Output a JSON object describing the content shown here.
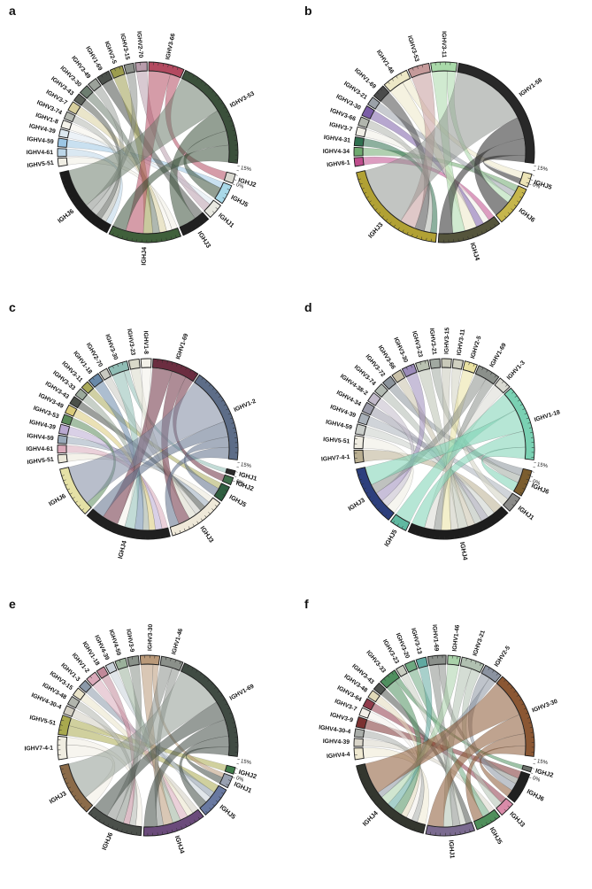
{
  "figure_title": "",
  "scale_axis": {
    "min_label": "0%",
    "max_label": "15%"
  },
  "chart_data": [
    {
      "type": "chord",
      "letter": "a",
      "scale_ticks": [
        "15%",
        "0%"
      ],
      "v_segments": [
        {
          "label": "IGHV5-51",
          "color": "#f0eee4"
        },
        {
          "label": "IGHV4-61",
          "color": "#bcd6e8"
        },
        {
          "label": "IGHV4-59",
          "color": "#9cc6e4"
        },
        {
          "label": "IGHV4-39",
          "color": "#dce8f0"
        },
        {
          "label": "IGHV1-8",
          "color": "#f4f2ea"
        },
        {
          "label": "IGHV3-74",
          "color": "#b4b8b0"
        },
        {
          "label": "IGHV3-7",
          "color": "#d8cf9e"
        },
        {
          "label": "IGHV3-43",
          "color": "#5a5f58"
        },
        {
          "label": "IGHV3-30",
          "color": "#6d7d70"
        },
        {
          "label": "IGHV3-49",
          "color": "#9ba19a"
        },
        {
          "label": "IGHV1-69",
          "color": "#4b504b"
        },
        {
          "label": "IGHV2-5",
          "color": "#9c9c4e"
        },
        {
          "label": "IGHV3-15",
          "color": "#8b908a"
        },
        {
          "label": "IGHV2-70",
          "color": "#b89cab"
        },
        {
          "label": "IGHV3-66",
          "color": "#b34a60"
        },
        {
          "label": "IGHV3-53",
          "color": "#3b503b"
        }
      ],
      "j_segments": [
        {
          "label": "IGHJ2",
          "color": "#d9d9d1"
        },
        {
          "label": "IGHJ5",
          "color": "#a9d9e9"
        },
        {
          "label": "IGHJ1",
          "color": "#e9e9e1"
        },
        {
          "label": "IGHJ3",
          "color": "#202020"
        },
        {
          "label": "IGHJ4",
          "color": "#40603b"
        },
        {
          "label": "IGHJ6",
          "color": "#1b1b1b"
        }
      ],
      "ribbons": [
        [
          0,
          4,
          1.5
        ],
        [
          1,
          5,
          1.5
        ],
        [
          2,
          1,
          1.6
        ],
        [
          3,
          2,
          1.4
        ],
        [
          4,
          4,
          1.4
        ],
        [
          5,
          5,
          1.4
        ],
        [
          6,
          4,
          1.8
        ],
        [
          7,
          5,
          1.5
        ],
        [
          8,
          4,
          1.8
        ],
        [
          9,
          5,
          1.8
        ],
        [
          10,
          3,
          2.4
        ],
        [
          11,
          4,
          2.4
        ],
        [
          12,
          5,
          1.8
        ],
        [
          13,
          2,
          2.2
        ],
        [
          14,
          4,
          4.5
        ],
        [
          14,
          0,
          2.2
        ],
        [
          15,
          5,
          10,
          "#6e7d6e"
        ],
        [
          15,
          3,
          4.5
        ],
        [
          15,
          1,
          3.0
        ],
        [
          15,
          4,
          3.5
        ]
      ]
    },
    {
      "type": "chord",
      "letter": "b",
      "scale_ticks": [
        "15%",
        "0%"
      ],
      "v_segments": [
        {
          "label": "IGHV6-1",
          "color": "#bf4d8d"
        },
        {
          "label": "IGHV4-34",
          "color": "#6fa96f"
        },
        {
          "label": "IGHV4-31",
          "color": "#2f6f4f"
        },
        {
          "label": "IGHV3-7",
          "color": "#f0eee6"
        },
        {
          "label": "IGHV3-66",
          "color": "#b1b5ad"
        },
        {
          "label": "IGHV3-30",
          "color": "#7b5ea7"
        },
        {
          "label": "IGHV3-21",
          "color": "#9ba1a9"
        },
        {
          "label": "IGHV1-69",
          "color": "#4b4b4b"
        },
        {
          "label": "IGHV1-46",
          "color": "#ede8c6"
        },
        {
          "label": "IGHV3-53",
          "color": "#c59a9a"
        },
        {
          "label": "IGHV3-11",
          "color": "#a9d9a9"
        },
        {
          "label": "IGHV1-58",
          "color": "#282828"
        }
      ],
      "j_segments": [
        {
          "label": "IGHJ5",
          "color": "#ece4b6"
        },
        {
          "label": "IGHJ6",
          "color": "#c6b64c"
        },
        {
          "label": "IGHJ4",
          "color": "#55553c"
        },
        {
          "label": "IGHJ3",
          "color": "#b1a134"
        }
      ],
      "ribbons": [
        [
          0,
          2,
          1.8
        ],
        [
          1,
          1,
          1.8
        ],
        [
          2,
          3,
          1.8
        ],
        [
          3,
          2,
          1.8
        ],
        [
          4,
          3,
          1.8
        ],
        [
          5,
          2,
          2.2
        ],
        [
          6,
          1,
          1.8
        ],
        [
          7,
          3,
          2.8
        ],
        [
          8,
          2,
          3.5
        ],
        [
          8,
          0,
          2.0
        ],
        [
          9,
          3,
          4.5
        ],
        [
          10,
          2,
          3.5
        ],
        [
          10,
          1,
          2.0
        ],
        [
          11,
          3,
          18,
          "#8f968f"
        ],
        [
          11,
          1,
          5.0
        ],
        [
          11,
          2,
          4.0
        ],
        [
          11,
          0,
          1.5
        ]
      ]
    },
    {
      "type": "chord",
      "letter": "c",
      "scale_ticks": [
        "15%",
        "0%"
      ],
      "v_segments": [
        {
          "label": "IGHV5-51",
          "color": "#ebe8d9"
        },
        {
          "label": "IGHV4-61",
          "color": "#d9a9b9"
        },
        {
          "label": "IGHV4-59",
          "color": "#99a9b9"
        },
        {
          "label": "IGHV4-39",
          "color": "#b9a9d1"
        },
        {
          "label": "IGHV3-53",
          "color": "#5b8b5b"
        },
        {
          "label": "IGHV3-49",
          "color": "#d9c979"
        },
        {
          "label": "IGHV3-43",
          "color": "#4b504a"
        },
        {
          "label": "IGHV3-33",
          "color": "#9ba99b"
        },
        {
          "label": "IGHV3-11",
          "color": "#a9a959"
        },
        {
          "label": "IGHV1-18",
          "color": "#6989a9"
        },
        {
          "label": "IGHV2-70",
          "color": "#c9c9c1"
        },
        {
          "label": "IGHV3-30",
          "color": "#90bdb5"
        },
        {
          "label": "IGHV3-23",
          "color": "#d9d9c9"
        },
        {
          "label": "IGHV1-8",
          "color": "#f3f1e9"
        },
        {
          "label": "IGHV1-69",
          "color": "#6b2d40"
        },
        {
          "label": "IGHV1-2",
          "color": "#5d6d88"
        }
      ],
      "j_segments": [
        {
          "label": "IGHJ1",
          "color": "#2b2b2b"
        },
        {
          "label": "IGHJ2",
          "color": "#406f4b"
        },
        {
          "label": "IGHJ5",
          "color": "#2f5f40"
        },
        {
          "label": "IGHJ3",
          "color": "#efe9d9"
        },
        {
          "label": "IGHJ4",
          "color": "#202020"
        },
        {
          "label": "IGHJ6",
          "color": "#e5e1a6"
        }
      ],
      "ribbons": [
        [
          0,
          3,
          1.4
        ],
        [
          1,
          4,
          1.4
        ],
        [
          2,
          3,
          1.4
        ],
        [
          3,
          4,
          1.6
        ],
        [
          4,
          5,
          1.5
        ],
        [
          5,
          4,
          1.5
        ],
        [
          6,
          3,
          1.4
        ],
        [
          7,
          4,
          1.4
        ],
        [
          8,
          2,
          1.4
        ],
        [
          9,
          4,
          2.0
        ],
        [
          10,
          3,
          1.4
        ],
        [
          11,
          4,
          2.4
        ],
        [
          11,
          0,
          1.0
        ],
        [
          12,
          3,
          1.8
        ],
        [
          13,
          4,
          1.8
        ],
        [
          14,
          4,
          3.8
        ],
        [
          14,
          3,
          2.8
        ],
        [
          14,
          1,
          1.6
        ],
        [
          15,
          5,
          9.5,
          "#7d88a0"
        ],
        [
          15,
          4,
          3.0
        ],
        [
          15,
          2,
          2.0
        ],
        [
          15,
          3,
          2.2
        ]
      ]
    },
    {
      "type": "chord",
      "letter": "d",
      "scale_ticks": [
        "15%",
        "0%"
      ],
      "v_segments": [
        {
          "label": "IGHV7-4-1",
          "color": "#b9ae90"
        },
        {
          "label": "IGHV5-51",
          "color": "#efece1"
        },
        {
          "label": "IGHV4-59",
          "color": "#c9cdc9"
        },
        {
          "label": "IGHV4-39",
          "color": "#a9b1b9"
        },
        {
          "label": "IGHV4-34",
          "color": "#9b9ba9"
        },
        {
          "label": "IGHV4-38-2",
          "color": "#c1b9c9"
        },
        {
          "label": "IGHV3-74",
          "color": "#b1b9b1"
        },
        {
          "label": "IGHV3-72",
          "color": "#8b939b"
        },
        {
          "label": "IGHV3-66",
          "color": "#c9c1a9"
        },
        {
          "label": "IGHV3-30",
          "color": "#9b8bb9"
        },
        {
          "label": "IGHV3-23",
          "color": "#b9c1b1"
        },
        {
          "label": "IGHV3-21",
          "color": "#a1a9a1"
        },
        {
          "label": "IGHV3-15",
          "color": "#c9c9b9"
        },
        {
          "label": "IGHV3-11",
          "color": "#d1d1c1"
        },
        {
          "label": "IGHV2-5",
          "color": "#e9e1a1"
        },
        {
          "label": "IGHV1-69",
          "color": "#8b908b"
        },
        {
          "label": "IGHV1-3",
          "color": "#d9d9d1"
        },
        {
          "label": "IGHV1-18",
          "color": "#7ad1b3"
        }
      ],
      "j_segments": [
        {
          "label": "IGHJ6",
          "color": "#7b5d2f"
        },
        {
          "label": "IGHJ1",
          "color": "#8b8b89"
        },
        {
          "label": "IGHJ4",
          "color": "#1d1d1d"
        },
        {
          "label": "IGHJ5",
          "color": "#60b9a1"
        },
        {
          "label": "IGHJ3",
          "color": "#2d3f7d"
        }
      ],
      "ribbons": [
        [
          0,
          2,
          1.8
        ],
        [
          1,
          4,
          1.8
        ],
        [
          2,
          2,
          1.4
        ],
        [
          3,
          1,
          1.4
        ],
        [
          4,
          2,
          1.4
        ],
        [
          5,
          4,
          1.4
        ],
        [
          6,
          2,
          1.4
        ],
        [
          7,
          0,
          1.4
        ],
        [
          8,
          2,
          1.4
        ],
        [
          9,
          4,
          1.8
        ],
        [
          10,
          2,
          1.8
        ],
        [
          11,
          0,
          1.4
        ],
        [
          12,
          2,
          1.4
        ],
        [
          13,
          1,
          1.4
        ],
        [
          14,
          2,
          1.8
        ],
        [
          15,
          4,
          1.8
        ],
        [
          15,
          2,
          1.4
        ],
        [
          16,
          2,
          1.8
        ],
        [
          17,
          3,
          3.0
        ],
        [
          17,
          4,
          3.5
        ],
        [
          17,
          2,
          2.5
        ],
        [
          17,
          0,
          1.8
        ]
      ]
    },
    {
      "type": "chord",
      "letter": "e",
      "scale_ticks": [
        "15%",
        "0%"
      ],
      "v_segments": [
        {
          "label": "IGHV7-4-1",
          "color": "#f0ede1"
        },
        {
          "label": "IGHV5-51",
          "color": "#a9a94e"
        },
        {
          "label": "IGHV4-30-4",
          "color": "#d1cdc1"
        },
        {
          "label": "IGHV3-48",
          "color": "#b1b5ad"
        },
        {
          "label": "IGHV3-15",
          "color": "#e9e3c9"
        },
        {
          "label": "IGHV1-3",
          "color": "#8b99a9"
        },
        {
          "label": "IGHV1-2",
          "color": "#d9a9b9"
        },
        {
          "label": "IGHV1-18",
          "color": "#c18999"
        },
        {
          "label": "IGHV4-39",
          "color": "#c9d1d9"
        },
        {
          "label": "IGHV4-59",
          "color": "#9bb19b"
        },
        {
          "label": "IGHV3-9",
          "color": "#899189"
        },
        {
          "label": "IGHV3-30",
          "color": "#b99979"
        },
        {
          "label": "IGHV1-46",
          "color": "#8b908a"
        },
        {
          "label": "IGHV1-69",
          "color": "#404b43"
        }
      ],
      "j_segments": [
        {
          "label": "IGHJ2",
          "color": "#407b4b"
        },
        {
          "label": "IGHJ1",
          "color": "#99a1b1"
        },
        {
          "label": "IGHJ5",
          "color": "#6979a1"
        },
        {
          "label": "IGHJ4",
          "color": "#6b4b7b"
        },
        {
          "label": "IGHJ6",
          "color": "#4b504b"
        },
        {
          "label": "IGHJ3",
          "color": "#8b6b49"
        }
      ],
      "ribbons": [
        [
          0,
          5,
          2.4
        ],
        [
          0,
          4,
          1.4
        ],
        [
          1,
          2,
          1.8
        ],
        [
          1,
          0,
          1.4
        ],
        [
          2,
          3,
          1.4
        ],
        [
          3,
          4,
          1.4
        ],
        [
          4,
          3,
          1.4
        ],
        [
          5,
          2,
          1.4
        ],
        [
          6,
          3,
          1.8
        ],
        [
          7,
          4,
          1.4
        ],
        [
          8,
          2,
          1.4
        ],
        [
          9,
          3,
          1.8
        ],
        [
          10,
          4,
          1.8
        ],
        [
          11,
          3,
          2.2
        ],
        [
          11,
          1,
          1.0
        ],
        [
          12,
          4,
          2.2
        ],
        [
          12,
          3,
          1.4
        ],
        [
          13,
          5,
          8.5,
          "#8f9a92"
        ],
        [
          13,
          4,
          3.5
        ],
        [
          13,
          3,
          3.0
        ],
        [
          13,
          2,
          2.0
        ],
        [
          13,
          1,
          1.5
        ]
      ]
    },
    {
      "type": "chord",
      "letter": "f",
      "scale_ticks": [
        "15%",
        "0%"
      ],
      "v_segments": [
        {
          "label": "IGHV4-4",
          "color": "#efe9d1"
        },
        {
          "label": "IGHV4-39",
          "color": "#d9d5c9"
        },
        {
          "label": "IGHV4-30-4",
          "color": "#a9ada9"
        },
        {
          "label": "IGHV3-9",
          "color": "#7b3131"
        },
        {
          "label": "IGHV3-7",
          "color": "#f2efe9"
        },
        {
          "label": "IGHV3-64",
          "color": "#8f3b4b"
        },
        {
          "label": "IGHV3-48",
          "color": "#e1d9b9"
        },
        {
          "label": "IGHV3-43",
          "color": "#4f534f"
        },
        {
          "label": "IGHV3-33",
          "color": "#4f8f5f"
        },
        {
          "label": "IGHV3-23",
          "color": "#c9cdc1"
        },
        {
          "label": "IGHV3-20",
          "color": "#6fa981"
        },
        {
          "label": "IGHV3-13",
          "color": "#60a9a1"
        },
        {
          "label": "IGHV1-69",
          "color": "#8b908b"
        },
        {
          "label": "IGHV1-46",
          "color": "#a9d1a9"
        },
        {
          "label": "IGHV3-21",
          "color": "#b1c1b1"
        },
        {
          "label": "IGHV2-5",
          "color": "#8b93a1"
        },
        {
          "label": "IGHV3-30",
          "color": "#8b5733"
        }
      ],
      "j_segments": [
        {
          "label": "IGHJ2",
          "color": "#6b706b"
        },
        {
          "label": "IGHJ6",
          "color": "#202020"
        },
        {
          "label": "IGHJ3",
          "color": "#d98ba9"
        },
        {
          "label": "IGHJ5",
          "color": "#4f8f5b"
        },
        {
          "label": "IGHJ1",
          "color": "#7b6b90"
        },
        {
          "label": "IGHJ4",
          "color": "#34372f"
        }
      ],
      "ribbons": [
        [
          0,
          5,
          2.0
        ],
        [
          1,
          3,
          1.4
        ],
        [
          2,
          5,
          1.4
        ],
        [
          3,
          1,
          1.8
        ],
        [
          4,
          5,
          1.4
        ],
        [
          5,
          2,
          1.5
        ],
        [
          6,
          5,
          1.4
        ],
        [
          7,
          4,
          1.4
        ],
        [
          8,
          5,
          2.2
        ],
        [
          8,
          0,
          1.0
        ],
        [
          9,
          4,
          1.4
        ],
        [
          10,
          3,
          1.8
        ],
        [
          11,
          5,
          1.8
        ],
        [
          12,
          4,
          1.8
        ],
        [
          12,
          1,
          1.4
        ],
        [
          13,
          5,
          2.2
        ],
        [
          14,
          4,
          2.2
        ],
        [
          14,
          2,
          1.8
        ],
        [
          15,
          1,
          1.8
        ],
        [
          15,
          5,
          1.4
        ],
        [
          16,
          5,
          7.5
        ],
        [
          16,
          4,
          3.8
        ],
        [
          16,
          3,
          2.4
        ],
        [
          16,
          1,
          1.8
        ]
      ]
    }
  ]
}
